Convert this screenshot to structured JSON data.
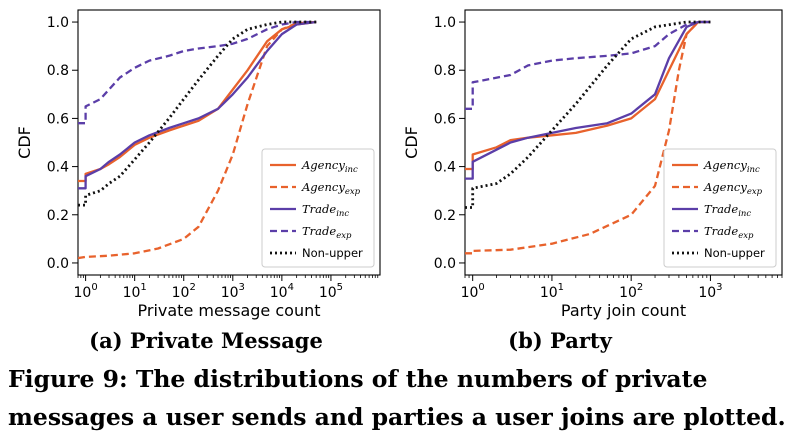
{
  "caption": "Figure 9: The distributions of the numbers of private messages a user sends and parties a user joins are plotted.",
  "colors": {
    "agency": "#e8622c",
    "trade": "#5b3ea8",
    "nonupper": "#111111"
  },
  "chart_data": [
    {
      "type": "line",
      "subcaption": "(a) Private Message",
      "xlabel": "Private message count",
      "ylabel": "CDF",
      "xscale": "log",
      "xlim": [
        0.7,
        1000000
      ],
      "ylim": [
        -0.05,
        1.05
      ],
      "xticks": [
        {
          "v": 1,
          "label": "10^0"
        },
        {
          "v": 10,
          "label": "10^1"
        },
        {
          "v": 100,
          "label": "10^2"
        },
        {
          "v": 1000,
          "label": "10^3"
        },
        {
          "v": 10000,
          "label": "10^4"
        },
        {
          "v": 100000,
          "label": "10^5"
        }
      ],
      "yticks": [
        0.0,
        0.2,
        0.4,
        0.6,
        0.8,
        1.0
      ],
      "legend_position": "lower-right",
      "series": [
        {
          "name": "Agency",
          "sub": "inc",
          "style": "solid",
          "color": "agency",
          "points": [
            [
              0.7,
              0.34
            ],
            [
              1,
              0.34
            ],
            [
              1,
              0.37
            ],
            [
              2,
              0.39
            ],
            [
              3,
              0.41
            ],
            [
              5,
              0.44
            ],
            [
              10,
              0.49
            ],
            [
              20,
              0.52
            ],
            [
              50,
              0.55
            ],
            [
              100,
              0.57
            ],
            [
              200,
              0.59
            ],
            [
              500,
              0.64
            ],
            [
              1000,
              0.72
            ],
            [
              2000,
              0.8
            ],
            [
              5000,
              0.92
            ],
            [
              10000,
              0.97
            ],
            [
              20000,
              0.99
            ],
            [
              50000,
              1.0
            ]
          ]
        },
        {
          "name": "Agency",
          "sub": "exp",
          "style": "dashed",
          "color": "agency",
          "points": [
            [
              0.7,
              0.02
            ],
            [
              1,
              0.025
            ],
            [
              3,
              0.03
            ],
            [
              10,
              0.04
            ],
            [
              30,
              0.06
            ],
            [
              100,
              0.1
            ],
            [
              200,
              0.15
            ],
            [
              500,
              0.3
            ],
            [
              1000,
              0.45
            ],
            [
              2000,
              0.66
            ],
            [
              5000,
              0.9
            ],
            [
              10000,
              0.97
            ],
            [
              20000,
              0.995
            ],
            [
              50000,
              1.0
            ]
          ]
        },
        {
          "name": "Trade",
          "sub": "inc",
          "style": "solid",
          "color": "trade",
          "points": [
            [
              0.7,
              0.31
            ],
            [
              1,
              0.31
            ],
            [
              1,
              0.36
            ],
            [
              2,
              0.39
            ],
            [
              3,
              0.42
            ],
            [
              5,
              0.45
            ],
            [
              10,
              0.5
            ],
            [
              20,
              0.53
            ],
            [
              50,
              0.56
            ],
            [
              100,
              0.58
            ],
            [
              200,
              0.6
            ],
            [
              500,
              0.64
            ],
            [
              1000,
              0.7
            ],
            [
              2000,
              0.77
            ],
            [
              5000,
              0.88
            ],
            [
              10000,
              0.95
            ],
            [
              20000,
              0.99
            ],
            [
              50000,
              1.0
            ]
          ]
        },
        {
          "name": "Trade",
          "sub": "exp",
          "style": "dashed",
          "color": "trade",
          "points": [
            [
              0.7,
              0.58
            ],
            [
              1,
              0.58
            ],
            [
              1,
              0.65
            ],
            [
              2,
              0.68
            ],
            [
              3,
              0.72
            ],
            [
              5,
              0.77
            ],
            [
              10,
              0.81
            ],
            [
              20,
              0.84
            ],
            [
              50,
              0.86
            ],
            [
              100,
              0.88
            ],
            [
              200,
              0.89
            ],
            [
              500,
              0.9
            ],
            [
              1000,
              0.91
            ],
            [
              2000,
              0.93
            ],
            [
              5000,
              0.97
            ],
            [
              10000,
              0.99
            ],
            [
              20000,
              1.0
            ],
            [
              50000,
              1.0
            ]
          ]
        },
        {
          "name": "Non-upper",
          "sub": "",
          "style": "dotted",
          "color": "nonupper",
          "points": [
            [
              0.7,
              0.24
            ],
            [
              1,
              0.24
            ],
            [
              1,
              0.28
            ],
            [
              2,
              0.3
            ],
            [
              3,
              0.33
            ],
            [
              5,
              0.36
            ],
            [
              10,
              0.43
            ],
            [
              20,
              0.5
            ],
            [
              50,
              0.6
            ],
            [
              100,
              0.68
            ],
            [
              200,
              0.76
            ],
            [
              500,
              0.86
            ],
            [
              1000,
              0.93
            ],
            [
              2000,
              0.97
            ],
            [
              5000,
              0.99
            ],
            [
              10000,
              1.0
            ],
            [
              20000,
              1.0
            ],
            [
              50000,
              1.0
            ]
          ]
        }
      ]
    },
    {
      "type": "line",
      "subcaption": "(b) Party",
      "xlabel": "Party join count",
      "ylabel": "CDF",
      "xscale": "log",
      "xlim": [
        0.8,
        8000
      ],
      "ylim": [
        -0.05,
        1.05
      ],
      "xticks": [
        {
          "v": 1,
          "label": "10^0"
        },
        {
          "v": 10,
          "label": "10^1"
        },
        {
          "v": 100,
          "label": "10^2"
        },
        {
          "v": 1000,
          "label": "10^3"
        }
      ],
      "yticks": [
        0.0,
        0.2,
        0.4,
        0.6,
        0.8,
        1.0
      ],
      "legend_position": "lower-right",
      "series": [
        {
          "name": "Agency",
          "sub": "inc",
          "style": "solid",
          "color": "agency",
          "points": [
            [
              0.8,
              0.39
            ],
            [
              1,
              0.39
            ],
            [
              1,
              0.45
            ],
            [
              2,
              0.48
            ],
            [
              3,
              0.51
            ],
            [
              5,
              0.52
            ],
            [
              10,
              0.53
            ],
            [
              20,
              0.54
            ],
            [
              50,
              0.57
            ],
            [
              100,
              0.6
            ],
            [
              200,
              0.68
            ],
            [
              300,
              0.8
            ],
            [
              500,
              0.95
            ],
            [
              700,
              1.0
            ],
            [
              1000,
              1.0
            ]
          ]
        },
        {
          "name": "Agency",
          "sub": "exp",
          "style": "dashed",
          "color": "agency",
          "points": [
            [
              0.8,
              0.04
            ],
            [
              1,
              0.04
            ],
            [
              1,
              0.05
            ],
            [
              3,
              0.055
            ],
            [
              10,
              0.08
            ],
            [
              30,
              0.12
            ],
            [
              100,
              0.2
            ],
            [
              200,
              0.32
            ],
            [
              300,
              0.55
            ],
            [
              400,
              0.8
            ],
            [
              500,
              0.95
            ],
            [
              700,
              1.0
            ],
            [
              1000,
              1.0
            ]
          ]
        },
        {
          "name": "Trade",
          "sub": "inc",
          "style": "solid",
          "color": "trade",
          "points": [
            [
              0.8,
              0.35
            ],
            [
              1,
              0.35
            ],
            [
              1,
              0.42
            ],
            [
              2,
              0.47
            ],
            [
              3,
              0.5
            ],
            [
              5,
              0.52
            ],
            [
              10,
              0.54
            ],
            [
              20,
              0.56
            ],
            [
              50,
              0.58
            ],
            [
              100,
              0.62
            ],
            [
              200,
              0.7
            ],
            [
              300,
              0.85
            ],
            [
              500,
              0.98
            ],
            [
              700,
              1.0
            ],
            [
              1000,
              1.0
            ]
          ]
        },
        {
          "name": "Trade",
          "sub": "exp",
          "style": "dashed",
          "color": "trade",
          "points": [
            [
              0.8,
              0.64
            ],
            [
              1,
              0.64
            ],
            [
              1,
              0.75
            ],
            [
              3,
              0.78
            ],
            [
              5,
              0.82
            ],
            [
              10,
              0.84
            ],
            [
              20,
              0.85
            ],
            [
              50,
              0.86
            ],
            [
              100,
              0.87
            ],
            [
              200,
              0.9
            ],
            [
              300,
              0.95
            ],
            [
              500,
              0.99
            ],
            [
              700,
              1.0
            ],
            [
              1000,
              1.0
            ]
          ]
        },
        {
          "name": "Non-upper",
          "sub": "",
          "style": "dotted",
          "color": "nonupper",
          "points": [
            [
              0.8,
              0.23
            ],
            [
              1,
              0.23
            ],
            [
              1,
              0.31
            ],
            [
              2,
              0.33
            ],
            [
              3,
              0.37
            ],
            [
              5,
              0.44
            ],
            [
              10,
              0.55
            ],
            [
              20,
              0.66
            ],
            [
              50,
              0.82
            ],
            [
              100,
              0.93
            ],
            [
              200,
              0.98
            ],
            [
              500,
              1.0
            ],
            [
              1000,
              1.0
            ]
          ]
        }
      ]
    }
  ]
}
